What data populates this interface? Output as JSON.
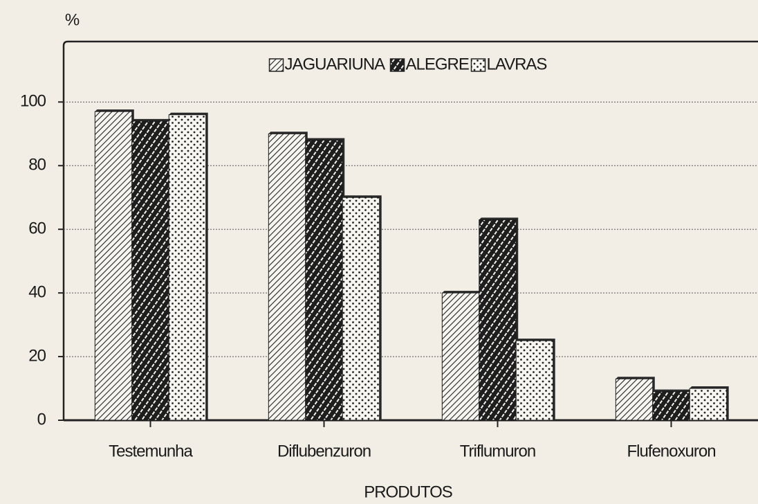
{
  "chart_data": {
    "type": "bar",
    "y_label": "%",
    "x_label": "PRODUTOS",
    "categories": [
      "Testemunha",
      "Diflubenzuron",
      "Triflumuron",
      "Flufenoxuron"
    ],
    "series": [
      {
        "name": "JAGUARIUNA",
        "color": "#1a1a1a",
        "values": [
          97,
          90,
          40,
          13
        ]
      },
      {
        "name": "ALEGRE",
        "color": "#1a1a1a",
        "values": [
          94,
          88,
          63,
          9
        ]
      },
      {
        "name": "LAVRAS",
        "color": "#1a1a1a",
        "values": [
          96,
          70,
          25,
          10
        ]
      }
    ],
    "ylim": [
      0,
      119
    ],
    "yticks": [
      0,
      20,
      40,
      60,
      80,
      100
    ],
    "grid": true,
    "legend": "top"
  }
}
